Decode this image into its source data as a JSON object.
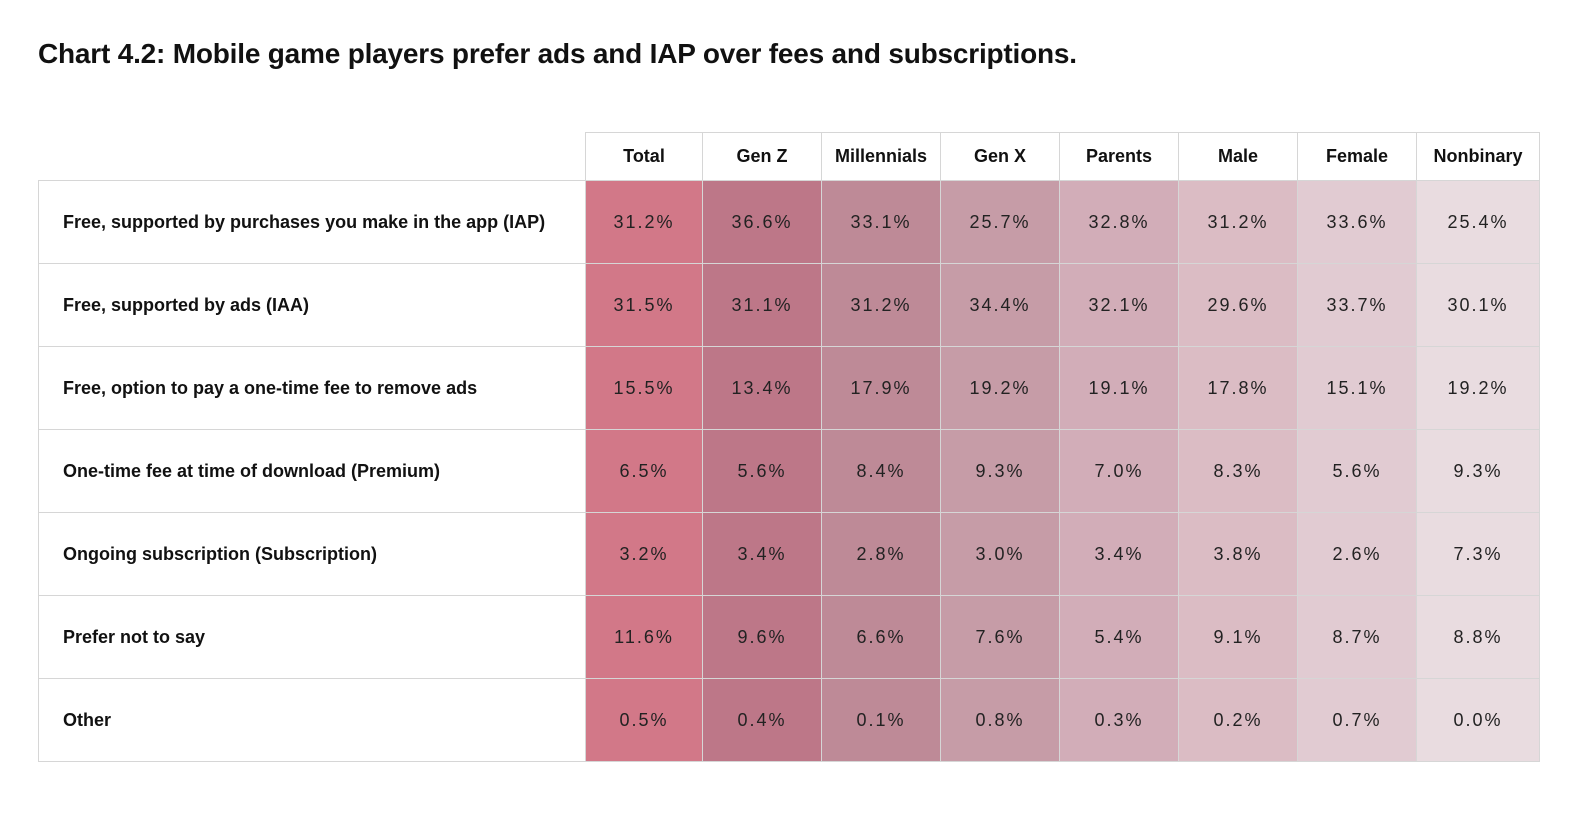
{
  "title": "Chart 4.2: Mobile game players prefer ads and IAP over fees and subscriptions.",
  "chart_data": {
    "type": "table",
    "columns": [
      "Total",
      "Gen Z",
      "Millennials",
      "Gen X",
      "Parents",
      "Male",
      "Female",
      "Nonbinary"
    ],
    "column_colors": [
      "#d27888",
      "#bd7788",
      "#be8a97",
      "#c69ca7",
      "#d2adb8",
      "#dbbcc4",
      "#e1cbd2",
      "#e9dce0"
    ],
    "rows": [
      {
        "label": "Free, supported by purchases you make in the app (IAP)",
        "values": [
          "31.2%",
          "36.6%",
          "33.1%",
          "25.7%",
          "32.8%",
          "31.2%",
          "33.6%",
          "25.4%"
        ]
      },
      {
        "label": "Free, supported by ads (IAA)",
        "values": [
          "31.5%",
          "31.1%",
          "31.2%",
          "34.4%",
          "32.1%",
          "29.6%",
          "33.7%",
          "30.1%"
        ]
      },
      {
        "label": "Free, option to pay a one-time fee to remove ads",
        "values": [
          "15.5%",
          "13.4%",
          "17.9%",
          "19.2%",
          "19.1%",
          "17.8%",
          "15.1%",
          "19.2%"
        ]
      },
      {
        "label": "One-time fee at time of download (Premium)",
        "values": [
          "6.5%",
          "5.6%",
          "8.4%",
          "9.3%",
          "7.0%",
          "8.3%",
          "5.6%",
          "9.3%"
        ]
      },
      {
        "label": "Ongoing subscription (Subscription)",
        "values": [
          "3.2%",
          "3.4%",
          "2.8%",
          "3.0%",
          "3.4%",
          "3.8%",
          "2.6%",
          "7.3%"
        ]
      },
      {
        "label": "Prefer not to say",
        "values": [
          "11.6%",
          "9.6%",
          "6.6%",
          "7.6%",
          "5.4%",
          "9.1%",
          "8.7%",
          "8.8%"
        ]
      },
      {
        "label": "Other",
        "values": [
          "0.5%",
          "0.4%",
          "0.1%",
          "0.8%",
          "0.3%",
          "0.2%",
          "0.7%",
          "0.0%"
        ]
      }
    ]
  }
}
